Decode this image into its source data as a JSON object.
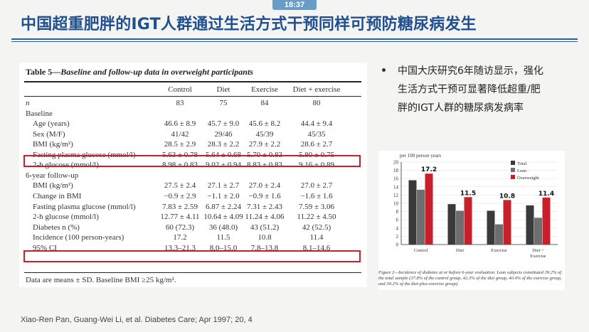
{
  "status_time": "18:37",
  "slide_title": "中国超重肥胖的IGT人群通过生活方式干预同样可预防糖尿病发生",
  "table": {
    "label": "Table 5—",
    "caption": "Baseline and follow-up data in overweight participants",
    "columns": [
      "Control",
      "Diet",
      "Exercise",
      "Diet + exercise"
    ],
    "rows": [
      {
        "label": "n",
        "values": [
          "83",
          "75",
          "84",
          "80"
        ]
      },
      {
        "label": "Baseline",
        "values": []
      },
      {
        "label": "Age (years)",
        "values": [
          "46.6 ± 8.9",
          "45.7 ± 9.0",
          "45.6 ± 8.2",
          "44.4 ± 9.4"
        ]
      },
      {
        "label": "Sex (M/F)",
        "values": [
          "41/42",
          "29/46",
          "45/39",
          "45/35"
        ]
      },
      {
        "label": "BMI (kg/m²)",
        "values": [
          "28.5 ± 2.9",
          "28.3 ± 2.2",
          "27.9 ± 2.2",
          "28.6 ± 2.7"
        ]
      },
      {
        "label": "Fasting plasma glucose (mmol/l)",
        "values": [
          "5.63 ± 0.78",
          "5.64 ± 0.68",
          "5.70 ± 0.83",
          "5.80 ± 0.75"
        ]
      },
      {
        "label": "2-h glucose (mmol/l)",
        "values": [
          "8.98 ± 0.83",
          "9.02 ± 0.94",
          "8.83 ± 0.83",
          "9.16 ± 0.89"
        ]
      },
      {
        "label": "6-year follow-up",
        "values": []
      },
      {
        "label": "BMI (kg/m²)",
        "values": [
          "27.5 ± 2.4",
          "27.1 ± 2.7",
          "27.0 ± 2.4",
          "27.0 ± 2.7"
        ]
      },
      {
        "label": "Change in BMI",
        "values": [
          "−0.9 ± 2.9",
          "−1.1 ± 2.0",
          "−0.9 ± 1.6",
          "−1.6 ± 1.6"
        ]
      },
      {
        "label": "Fasting plasma glucose (mmol/l)",
        "values": [
          "7.83 ± 2.59",
          "6.87 ± 2.24",
          "7.31 ± 2.43",
          "7.59 ± 3.06"
        ]
      },
      {
        "label": "2-h glucose (mmol/l)",
        "values": [
          "12.77 ± 4.11",
          "10.64 ± 4.09",
          "11.24 ± 4.06",
          "11.22 ± 4.50"
        ]
      },
      {
        "label": "Diabetes n (%)",
        "values": [
          "60 (72.3)",
          "36 (48.0)",
          "43 (51.2)",
          "42 (52.5)"
        ]
      },
      {
        "label": "Incidence (100 person-years)",
        "values": [
          "17.2",
          "11.5",
          "10.8",
          "11.4"
        ]
      },
      {
        "label": "95% CI",
        "values": [
          "13.3–21.3",
          "8.0–15.0",
          "7.8–13.8",
          "8.1–14.6"
        ]
      }
    ],
    "footnote": "Data are means ± SD. Baseline BMI ≥25 kg/m²."
  },
  "bullet_lines": [
    "中国大庆研究6年随访显示，强化",
    "生活方式干预可显著降低超重/肥",
    "胖的IGT人群的糖尿病发病率"
  ],
  "chart_data": {
    "type": "bar",
    "title": "per 100 person years",
    "categories": [
      "Control",
      "Diet",
      "Exercise",
      "Diet +\nExercise"
    ],
    "ylim": [
      0,
      20
    ],
    "yticks": [
      0,
      2,
      4,
      6,
      8,
      10,
      12,
      14,
      16,
      18,
      20
    ],
    "series": [
      {
        "name": "Total",
        "color": "#3a3a3a",
        "values": [
          15.6,
          9.8,
          8.2,
          9.5
        ]
      },
      {
        "name": "Lean",
        "color": "#6e6e6e",
        "values": [
          13.3,
          8.2,
          4.9,
          6.5
        ]
      },
      {
        "name": "Overweight",
        "color": "#c8202a",
        "values": [
          17.2,
          11.5,
          10.8,
          11.4
        ]
      }
    ],
    "data_labels": [
      "17.2",
      "11.5",
      "10.8",
      "11.4"
    ],
    "legend": "top-right",
    "caption": "Figure 2—Incidence of diabetes at or before 6-year evaluation. Lean subjects constituted 39.2% of the total sample (37.8% of the control group, 42.3% of the diet group, 40.4% of the exercise group, and 39.2% of the diet-plus-exercise group)."
  },
  "citation": "Xiao-Ren Pan, Guang-Wei Li, et al. Diabetes Care; Apr 1997; 20, 4",
  "highlight_color": "#c8202a",
  "title_color": "#1f4f8f"
}
